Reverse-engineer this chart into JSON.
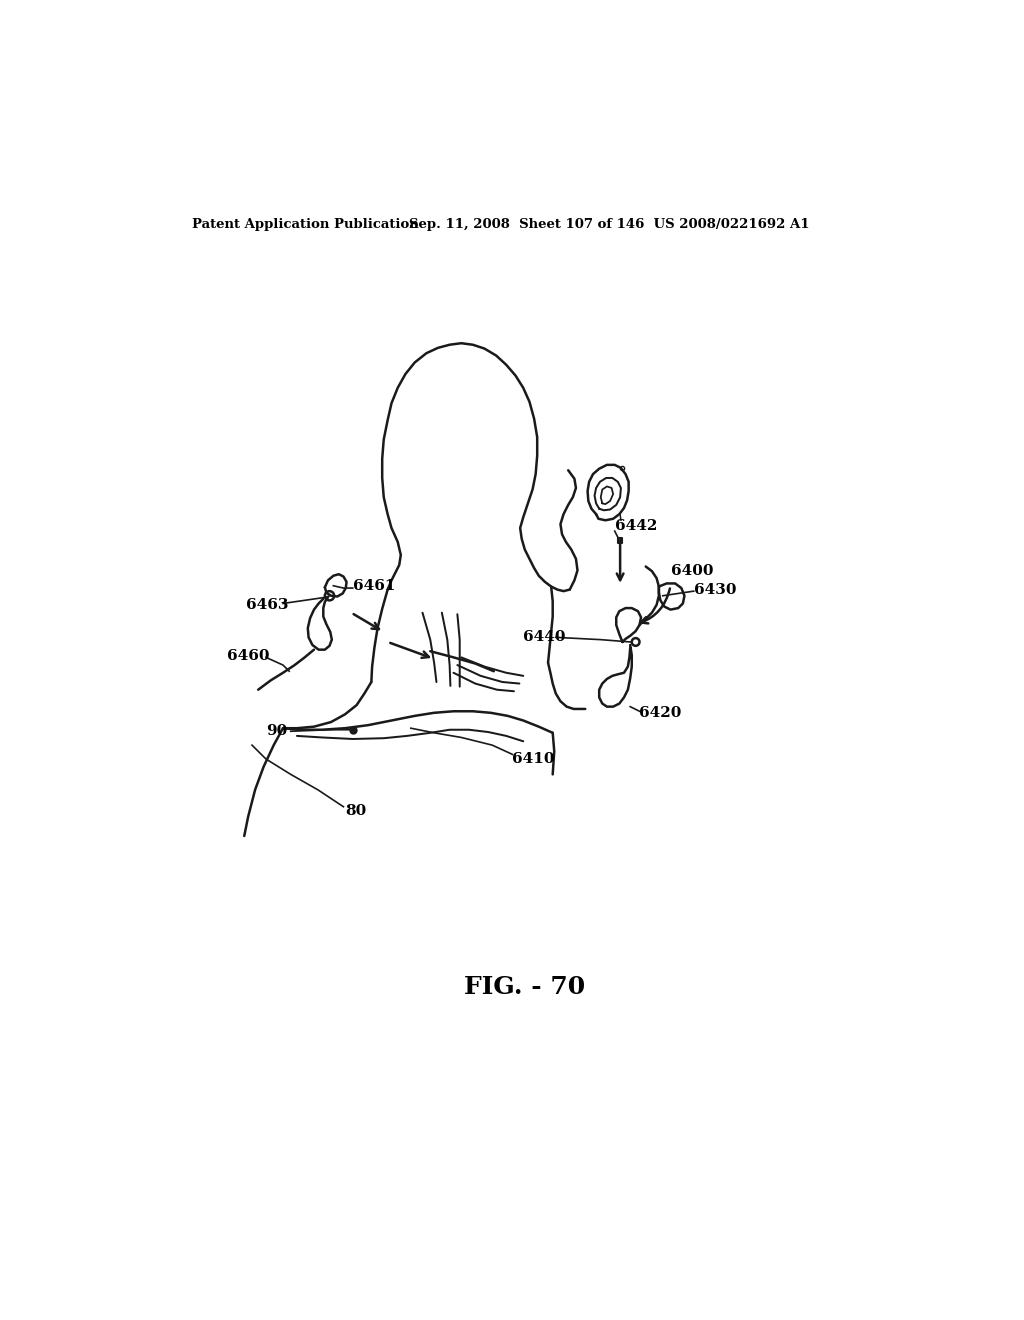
{
  "background_color": "#ffffff",
  "header_left": "Patent Application Publication",
  "header_right": "Sep. 11, 2008  Sheet 107 of 146  US 2008/0221692 A1",
  "figure_label": "FIG. - 70",
  "line_color": "#1a1a1a"
}
